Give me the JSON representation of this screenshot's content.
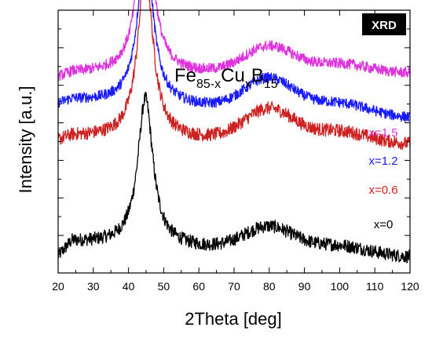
{
  "chart_data": {
    "type": "line",
    "title": "",
    "formula": {
      "base": "Fe",
      "sub1": "85-x",
      "mid": "Cu",
      "sub2": "x",
      "end": "B",
      "sub3": "15"
    },
    "badge": "XRD",
    "xlabel": "2Theta [deg]",
    "ylabel": "Intensity [a.u.]",
    "xlim": [
      20,
      120
    ],
    "x_ticks": [
      20,
      30,
      40,
      50,
      60,
      70,
      80,
      90,
      100,
      110,
      120
    ],
    "y_ticks_labeled": false,
    "grid": false,
    "peaks": {
      "main": {
        "center": 44.8,
        "width": 2.6
      },
      "broad": {
        "center": 80,
        "width": 7
      }
    },
    "series": [
      {
        "label": "x=0",
        "color": "#000000",
        "offset": 0,
        "baseline": [
          12,
          6
        ],
        "peak_height": 56,
        "broad_height": 9,
        "noise": 2.5
      },
      {
        "label": "x=0.6",
        "color": "#cc2222",
        "offset": 40,
        "baseline": [
          12,
          9
        ],
        "peak_height": 64,
        "broad_height": 12,
        "noise": 2.5
      },
      {
        "label": "x=1.2",
        "color": "#1a1aff",
        "offset": 56,
        "baseline": [
          10,
          3
        ],
        "peak_height": 60,
        "broad_height": 12,
        "noise": 2.0
      },
      {
        "label": "x=1.5",
        "color": "#dd33dd",
        "offset": 68,
        "baseline": [
          8,
          8
        ],
        "peak_height": 65,
        "broad_height": 10,
        "noise": 2.0
      }
    ]
  }
}
